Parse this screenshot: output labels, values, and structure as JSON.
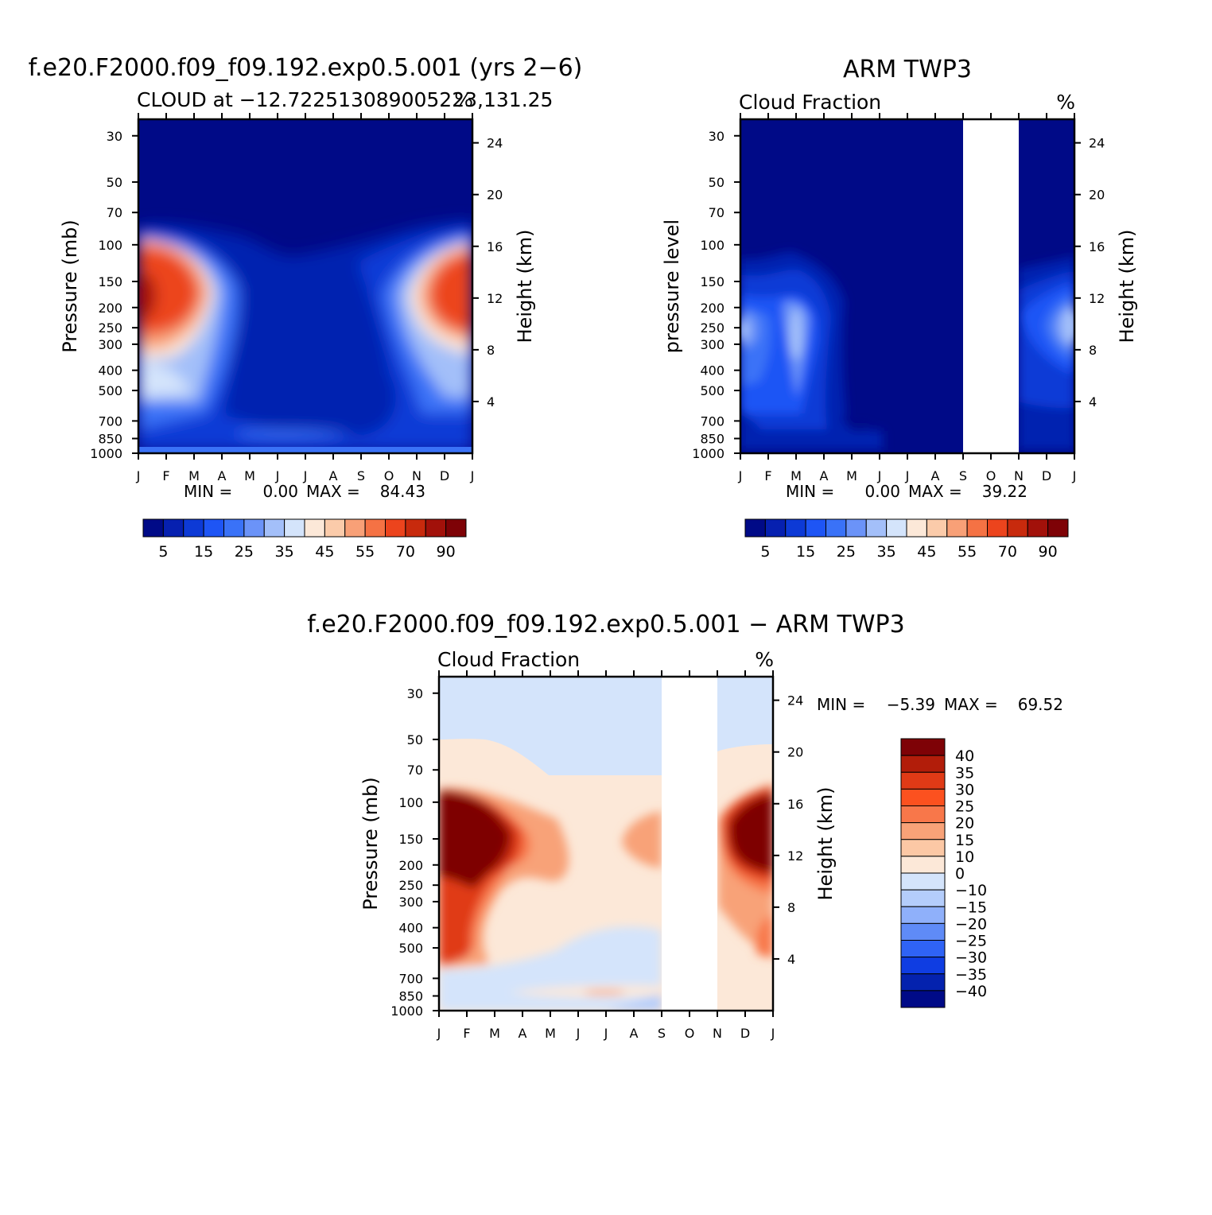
{
  "chart_data": [
    {
      "type": "heatmap",
      "title": "f.e20.F2000.f09_f09.192.exp0.5.001 (yrs 2−6)",
      "subtitle": "CLOUD at −12.722513089005223,131.25",
      "units": "%",
      "ylabel": "Pressure (mb)",
      "ylabel_right": "Height (km)",
      "x_ticks": [
        "J",
        "F",
        "M",
        "A",
        "M",
        "J",
        "J",
        "A",
        "S",
        "O",
        "N",
        "D",
        "J"
      ],
      "y_ticks": [
        30,
        50,
        70,
        100,
        150,
        200,
        250,
        300,
        400,
        500,
        700,
        850,
        1000
      ],
      "y2_ticks": [
        24,
        20,
        16,
        12,
        8,
        4
      ],
      "ylim": [
        1000,
        25
      ],
      "y_scale": "log",
      "min_label": "MIN =",
      "min": "0.00",
      "max_label": "MAX =",
      "max": "84.43",
      "colorbar_labels": [
        "5",
        "15",
        "25",
        "35",
        "45",
        "55",
        "70",
        "90"
      ],
      "colorbar_orientation": "horizontal"
    },
    {
      "type": "heatmap",
      "title": "ARM TWP3",
      "subtitle": "Cloud Fraction",
      "units": "%",
      "ylabel": "pressure level",
      "ylabel_right": "Height (km)",
      "x_ticks": [
        "J",
        "F",
        "M",
        "A",
        "M",
        "J",
        "J",
        "A",
        "S",
        "O",
        "N",
        "D",
        "J"
      ],
      "y_ticks": [
        30,
        50,
        70,
        100,
        150,
        200,
        250,
        300,
        400,
        500,
        700,
        850,
        1000
      ],
      "y2_ticks": [
        24,
        20,
        16,
        12,
        8,
        4
      ],
      "ylim": [
        1000,
        25
      ],
      "y_scale": "log",
      "missing_months": [
        "S",
        "O",
        "N"
      ],
      "min_label": "MIN =",
      "min": "0.00",
      "max_label": "MAX =",
      "max": "39.22",
      "colorbar_labels": [
        "5",
        "15",
        "25",
        "35",
        "45",
        "55",
        "70",
        "90"
      ],
      "colorbar_orientation": "horizontal"
    },
    {
      "type": "heatmap",
      "title": "f.e20.F2000.f09_f09.192.exp0.5.001 − ARM TWP3",
      "subtitle": "Cloud Fraction",
      "units": "%",
      "ylabel": "Pressure (mb)",
      "ylabel_right": "Height (km)",
      "x_ticks": [
        "J",
        "F",
        "M",
        "A",
        "M",
        "J",
        "J",
        "A",
        "S",
        "O",
        "N",
        "D",
        "J"
      ],
      "y_ticks": [
        30,
        50,
        70,
        100,
        150,
        200,
        250,
        300,
        400,
        500,
        700,
        850,
        1000
      ],
      "y2_ticks": [
        24,
        20,
        16,
        12,
        8,
        4
      ],
      "ylim": [
        1000,
        25
      ],
      "y_scale": "log",
      "missing_months": [
        "S",
        "O",
        "N"
      ],
      "min_label": "MIN =",
      "min": "−5.39",
      "max_label": "MAX =",
      "max": "69.52",
      "colorbar_labels": [
        "40",
        "35",
        "30",
        "25",
        "20",
        "15",
        "10",
        "0",
        "−10",
        "−15",
        "−20",
        "−25",
        "−30",
        "−35",
        "−40"
      ],
      "colorbar_orientation": "vertical"
    }
  ],
  "colors": {
    "seq": [
      "#000a87",
      "#0620b0",
      "#0d3ad6",
      "#1e55f5",
      "#3a72f7",
      "#6b93f8",
      "#a3bff9",
      "#d4e4fb",
      "#fce8d8",
      "#fbcbaa",
      "#f8a077",
      "#f57244",
      "#ec441d",
      "#c82a0d",
      "#a2110a",
      "#7e0206"
    ],
    "diff": [
      "#7e0206",
      "#b21d0a",
      "#e03a16",
      "#fc511f",
      "#f8774a",
      "#f8a278",
      "#fcc8a5",
      "#fce8d8",
      "#d4e4fb",
      "#b4cdfb",
      "#8fb0fa",
      "#5f8bf7",
      "#2f63f5",
      "#0f3de2",
      "#0422ae",
      "#000a87"
    ]
  }
}
